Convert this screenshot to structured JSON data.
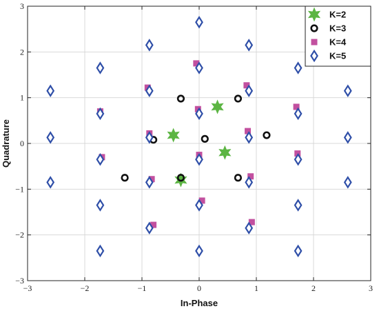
{
  "chart_data": {
    "type": "scatter",
    "xlabel": "In-Phase",
    "ylabel": "Quadrature",
    "xlim": [
      -3,
      3
    ],
    "ylim": [
      -3,
      3
    ],
    "xticks": [
      -3,
      -2,
      -1,
      0,
      1,
      2,
      3
    ],
    "yticks": [
      -3,
      -2,
      -1,
      0,
      1,
      2,
      3
    ],
    "xtick_labels": [
      "−3",
      "−2",
      "−1",
      "0",
      "1",
      "2",
      "3"
    ],
    "ytick_labels": [
      "−3",
      "−2",
      "−1",
      "0",
      "1",
      "2",
      "3"
    ],
    "grid": true,
    "legend_position": "top-right",
    "series": [
      {
        "name": "K=2",
        "marker": "star",
        "color": "#5cb543",
        "points": [
          [
            0.32,
            0.8
          ],
          [
            -0.45,
            0.18
          ],
          [
            0.45,
            -0.2
          ],
          [
            -0.32,
            -0.8
          ]
        ]
      },
      {
        "name": "K=3",
        "marker": "circle",
        "color": "#111111",
        "points": [
          [
            -0.32,
            0.98
          ],
          [
            0.68,
            0.98
          ],
          [
            -0.8,
            0.08
          ],
          [
            0.1,
            0.1
          ],
          [
            1.18,
            0.18
          ],
          [
            -1.3,
            -0.75
          ],
          [
            -0.32,
            -0.75
          ],
          [
            0.68,
            -0.75
          ]
        ]
      },
      {
        "name": "K=4",
        "marker": "square",
        "color": "#c2509f",
        "points": [
          [
            -0.05,
            1.75
          ],
          [
            -0.9,
            1.22
          ],
          [
            0.83,
            1.27
          ],
          [
            -1.73,
            0.7
          ],
          [
            -0.02,
            0.75
          ],
          [
            1.7,
            0.8
          ],
          [
            -0.87,
            0.22
          ],
          [
            0.85,
            0.27
          ],
          [
            -1.7,
            -0.3
          ],
          [
            0.0,
            -0.25
          ],
          [
            1.72,
            -0.22
          ],
          [
            -0.83,
            -0.78
          ],
          [
            0.9,
            -0.72
          ],
          [
            0.05,
            -1.25
          ],
          [
            -0.8,
            -1.78
          ],
          [
            0.92,
            -1.72
          ]
        ]
      },
      {
        "name": "K=5",
        "marker": "diamond",
        "color": "#2f4fa8",
        "points": [
          [
            0.0,
            2.65
          ],
          [
            -0.87,
            2.15
          ],
          [
            0.87,
            2.15
          ],
          [
            -1.73,
            1.65
          ],
          [
            0.0,
            1.65
          ],
          [
            1.73,
            1.65
          ],
          [
            -2.6,
            1.15
          ],
          [
            -0.87,
            1.15
          ],
          [
            0.87,
            1.15
          ],
          [
            2.6,
            1.15
          ],
          [
            -1.73,
            0.65
          ],
          [
            0.0,
            0.65
          ],
          [
            1.73,
            0.65
          ],
          [
            -2.6,
            0.13
          ],
          [
            -0.87,
            0.13
          ],
          [
            0.87,
            0.13
          ],
          [
            2.6,
            0.13
          ],
          [
            -1.73,
            -0.35
          ],
          [
            0.0,
            -0.35
          ],
          [
            1.73,
            -0.35
          ],
          [
            -2.6,
            -0.85
          ],
          [
            -0.87,
            -0.85
          ],
          [
            0.87,
            -0.85
          ],
          [
            2.6,
            -0.85
          ],
          [
            -1.73,
            -1.35
          ],
          [
            0.0,
            -1.35
          ],
          [
            1.73,
            -1.35
          ],
          [
            -0.87,
            -1.85
          ],
          [
            0.87,
            -1.85
          ],
          [
            -1.73,
            -2.35
          ],
          [
            0.0,
            -2.35
          ],
          [
            1.73,
            -2.35
          ]
        ]
      }
    ]
  }
}
